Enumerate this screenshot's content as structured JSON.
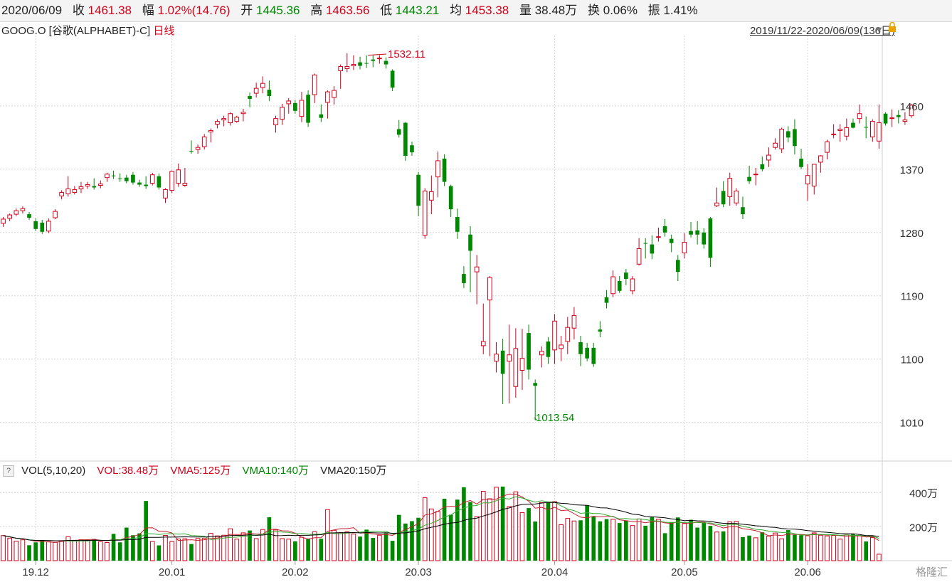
{
  "header": {
    "date": "2020/06/09",
    "close_label": "收",
    "close": "1461.38",
    "change_label": "幅",
    "change": "1.02%(14.76)",
    "open_label": "开",
    "open": "1445.36",
    "high_label": "高",
    "high": "1463.56",
    "low_label": "低",
    "low": "1443.21",
    "avg_label": "均",
    "avg": "1453.38",
    "vol_label": "量",
    "vol": "38.48万",
    "turnover_label": "换",
    "turnover": "0.06%",
    "amplitude_label": "振",
    "amplitude": "1.41%"
  },
  "title": {
    "name": "GOOG.O [谷歌(ALPHABET)-C]",
    "period": "日线"
  },
  "range": {
    "text": "2019/11/22-2020/06/09(136日)"
  },
  "annotations": {
    "max": "1532.11",
    "min": "1013.54"
  },
  "volume_bar": {
    "help": "?",
    "vol": "VOL(5,10,20)",
    "vol_value": "VOL:38.48万",
    "vma5": "VMA5:125万",
    "vma10": "VMA10:140万",
    "vma20": "VMA20:150万"
  },
  "logo": "格隆汇",
  "colors": {
    "up": "#d0021b",
    "down": "#008800",
    "vma5": "#c81e2e",
    "vma10": "#2faa2f",
    "vma20": "#000000"
  },
  "chart_data": [
    {
      "type": "candlestick",
      "y_ticks": [
        1460,
        1370,
        1280,
        1190,
        1100,
        1010
      ],
      "ylim": [
        955,
        1560
      ],
      "x_ticks": [
        "19.12",
        "20.01",
        "20.02",
        "20.03",
        "20.04",
        "20.05",
        "20.06"
      ],
      "x_tick_index": [
        5,
        26,
        45,
        64,
        85,
        105,
        124
      ],
      "n_days": 136,
      "candles": [
        [
          1293,
          1302,
          1288,
          1299
        ],
        [
          1300,
          1307,
          1296,
          1305
        ],
        [
          1306,
          1314,
          1303,
          1311
        ],
        [
          1311,
          1317,
          1307,
          1314
        ],
        [
          1306,
          1309,
          1298,
          1301
        ],
        [
          1296,
          1300,
          1282,
          1285
        ],
        [
          1294,
          1298,
          1278,
          1281
        ],
        [
          1282,
          1300,
          1279,
          1296
        ],
        [
          1301,
          1313,
          1299,
          1310
        ],
        [
          1332,
          1340,
          1327,
          1337
        ],
        [
          1335,
          1360,
          1331,
          1342
        ],
        [
          1337,
          1346,
          1334,
          1341
        ],
        [
          1342,
          1352,
          1336,
          1345
        ],
        [
          1346,
          1352,
          1342,
          1348
        ],
        [
          1346,
          1357,
          1341,
          1344
        ],
        [
          1347,
          1354,
          1343,
          1349
        ],
        [
          1358,
          1365,
          1352,
          1363
        ],
        [
          1361,
          1368,
          1356,
          1360
        ],
        [
          1357,
          1364,
          1352,
          1356
        ],
        [
          1358,
          1362,
          1350,
          1353
        ],
        [
          1362,
          1366,
          1348,
          1351
        ],
        [
          1351,
          1355,
          1345,
          1348
        ],
        [
          1348,
          1360,
          1342,
          1346
        ],
        [
          1350,
          1365,
          1347,
          1362
        ],
        [
          1360,
          1364,
          1341,
          1344
        ],
        [
          1329,
          1343,
          1322,
          1341
        ],
        [
          1340,
          1368,
          1336,
          1367
        ],
        [
          1350,
          1378,
          1345,
          1369
        ],
        [
          1347,
          1372,
          1345,
          1350
        ],
        [
          1396,
          1411,
          1392,
          1395
        ],
        [
          1398,
          1405,
          1392,
          1401
        ],
        [
          1402,
          1420,
          1398,
          1416
        ],
        [
          1423,
          1428,
          1408,
          1425
        ],
        [
          1434,
          1441,
          1428,
          1438
        ],
        [
          1440,
          1446,
          1431,
          1442
        ],
        [
          1436,
          1451,
          1432,
          1449
        ],
        [
          1438,
          1446,
          1436,
          1444
        ],
        [
          1449,
          1456,
          1438,
          1451
        ],
        [
          1474,
          1479,
          1458,
          1470
        ],
        [
          1478,
          1493,
          1472,
          1485
        ],
        [
          1486,
          1502,
          1478,
          1492
        ],
        [
          1483,
          1496,
          1467,
          1474
        ],
        [
          1433,
          1446,
          1422,
          1442
        ],
        [
          1441,
          1463,
          1433,
          1458
        ],
        [
          1463,
          1471,
          1449,
          1467
        ],
        [
          1464,
          1468,
          1449,
          1453
        ],
        [
          1445,
          1480,
          1437,
          1468
        ],
        [
          1476,
          1482,
          1430,
          1436
        ],
        [
          1476,
          1506,
          1464,
          1504
        ],
        [
          1448,
          1462,
          1437,
          1443
        ],
        [
          1465,
          1482,
          1442,
          1480
        ],
        [
          1472,
          1488,
          1462,
          1482
        ],
        [
          1510,
          1519,
          1484,
          1516
        ],
        [
          1513,
          1535,
          1508,
          1516
        ],
        [
          1517,
          1532,
          1511,
          1519
        ],
        [
          1522,
          1530,
          1512,
          1517
        ],
        [
          1521,
          1532,
          1514,
          1520
        ],
        [
          1526,
          1532,
          1515,
          1524
        ],
        [
          1528,
          1532,
          1520,
          1528
        ],
        [
          1524,
          1529,
          1513,
          1519
        ],
        [
          1510,
          1512,
          1481,
          1486
        ],
        [
          1427,
          1440,
          1415,
          1419
        ],
        [
          1436,
          1437,
          1382,
          1389
        ],
        [
          1404,
          1409,
          1389,
          1394
        ],
        [
          1362,
          1366,
          1303,
          1318
        ],
        [
          1276,
          1343,
          1271,
          1339
        ],
        [
          1326,
          1361,
          1306,
          1338
        ],
        [
          1359,
          1395,
          1330,
          1382
        ],
        [
          1385,
          1391,
          1346,
          1352
        ],
        [
          1346,
          1348,
          1302,
          1313
        ],
        [
          1302,
          1314,
          1271,
          1281
        ],
        [
          1221,
          1232,
          1201,
          1208
        ],
        [
          1277,
          1289,
          1195,
          1254
        ],
        [
          1224,
          1248,
          1178,
          1231
        ],
        [
          1119,
          1179,
          1107,
          1125
        ],
        [
          1184,
          1218,
          1104,
          1216
        ],
        [
          1097,
          1124,
          1081,
          1107
        ],
        [
          1112,
          1129,
          1036,
          1079
        ],
        [
          1097,
          1149,
          1037,
          1106
        ],
        [
          1061,
          1144,
          1045,
          1115
        ],
        [
          1084,
          1143,
          1056,
          1101
        ],
        [
          1137,
          1149,
          1071,
          1085
        ],
        [
          1066,
          1071,
          1013,
          1062
        ],
        [
          1106,
          1118,
          1088,
          1111
        ],
        [
          1125,
          1131,
          1093,
          1103
        ],
        [
          1113,
          1164,
          1093,
          1154
        ],
        [
          1115,
          1133,
          1097,
          1120
        ],
        [
          1125,
          1160,
          1107,
          1145
        ],
        [
          1144,
          1174,
          1128,
          1162
        ],
        [
          1124,
          1133,
          1090,
          1107
        ],
        [
          1116,
          1123,
          1097,
          1101
        ],
        [
          1116,
          1123,
          1089,
          1093
        ],
        [
          1142,
          1154,
          1131,
          1139
        ],
        [
          1188,
          1198,
          1172,
          1180
        ],
        [
          1193,
          1226,
          1188,
          1217
        ],
        [
          1211,
          1218,
          1194,
          1197
        ],
        [
          1223,
          1228,
          1205,
          1214
        ],
        [
          1197,
          1218,
          1192,
          1214
        ],
        [
          1235,
          1272,
          1233,
          1257
        ],
        [
          1265,
          1272,
          1243,
          1264
        ],
        [
          1263,
          1276,
          1242,
          1250
        ],
        [
          1273,
          1287,
          1267,
          1274
        ],
        [
          1289,
          1299,
          1274,
          1280
        ],
        [
          1271,
          1277,
          1252,
          1265
        ],
        [
          1241,
          1248,
          1211,
          1224
        ],
        [
          1251,
          1279,
          1243,
          1266
        ],
        [
          1282,
          1295,
          1273,
          1277
        ],
        [
          1283,
          1296,
          1263,
          1277
        ],
        [
          1280,
          1286,
          1257,
          1263
        ],
        [
          1300,
          1302,
          1231,
          1244
        ],
        [
          1318,
          1344,
          1316,
          1322
        ],
        [
          1339,
          1353,
          1316,
          1320
        ],
        [
          1331,
          1365,
          1318,
          1357
        ],
        [
          1322,
          1343,
          1318,
          1339
        ],
        [
          1316,
          1331,
          1299,
          1306
        ],
        [
          1359,
          1375,
          1349,
          1353
        ],
        [
          1362,
          1372,
          1347,
          1363
        ],
        [
          1377,
          1388,
          1367,
          1370
        ],
        [
          1383,
          1401,
          1373,
          1390
        ],
        [
          1401,
          1414,
          1398,
          1407
        ],
        [
          1399,
          1429,
          1393,
          1427
        ],
        [
          1424,
          1431,
          1408,
          1415
        ],
        [
          1427,
          1441,
          1391,
          1403
        ],
        [
          1385,
          1399,
          1370,
          1373
        ],
        [
          1349,
          1377,
          1325,
          1361
        ],
        [
          1346,
          1375,
          1334,
          1377
        ],
        [
          1380,
          1390,
          1365,
          1389
        ],
        [
          1394,
          1412,
          1384,
          1409
        ],
        [
          1419,
          1434,
          1414,
          1420
        ],
        [
          1425,
          1434,
          1409,
          1427
        ],
        [
          1417,
          1442,
          1411,
          1429
        ],
        [
          1436,
          1442,
          1428,
          1429
        ],
        [
          1442,
          1462,
          1435,
          1449
        ],
        [
          1430,
          1445,
          1414,
          1429
        ],
        [
          1416,
          1441,
          1409,
          1438
        ],
        [
          1410,
          1462,
          1399,
          1436
        ],
        [
          1449,
          1451,
          1432,
          1435
        ],
        [
          1442,
          1455,
          1430,
          1443
        ],
        [
          1447,
          1454,
          1435,
          1444
        ],
        [
          1438,
          1451,
          1433,
          1440
        ],
        [
          1446,
          1463,
          1443,
          1461
        ]
      ]
    },
    {
      "type": "bar",
      "name": "VOL",
      "y_ticks": [
        400,
        200
      ],
      "y_tick_labels": [
        "400万",
        "200万"
      ],
      "ylim": [
        0,
        470
      ],
      "volumes": [
        148,
        133,
        115,
        123,
        91,
        108,
        120,
        111,
        108,
        118,
        141,
        120,
        123,
        118,
        128,
        112,
        107,
        158,
        108,
        195,
        150,
        161,
        352,
        113,
        90,
        149,
        113,
        128,
        129,
        98,
        131,
        131,
        161,
        146,
        150,
        188,
        127,
        164,
        178,
        130,
        184,
        256,
        181,
        130,
        127,
        114,
        138,
        128,
        170,
        129,
        301,
        179,
        166,
        170,
        157,
        142,
        183,
        134,
        150,
        161,
        117,
        270,
        219,
        233,
        253,
        371,
        305,
        290,
        365,
        271,
        360,
        433,
        346,
        260,
        409,
        365,
        433,
        437,
        319,
        406,
        283,
        310,
        231,
        342,
        341,
        348,
        212,
        249,
        234,
        238,
        327,
        261,
        232,
        245,
        244,
        222,
        236,
        207,
        246,
        206,
        256,
        244,
        162,
        227,
        255,
        219,
        241,
        195,
        222,
        205,
        169,
        173,
        229,
        232,
        139,
        148,
        135,
        167,
        145,
        163,
        129,
        180,
        152,
        150,
        147,
        164,
        150,
        146,
        149,
        127,
        152,
        157,
        148,
        113,
        136,
        38
      ]
    }
  ]
}
